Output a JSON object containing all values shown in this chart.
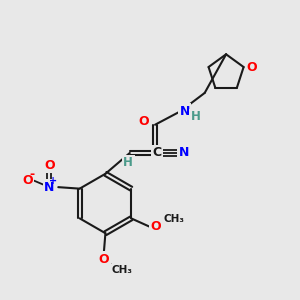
{
  "background_color": "#e8e8e8",
  "bond_color": "#1a1a1a",
  "atom_colors": {
    "O": "#ff0000",
    "N": "#0000ff",
    "C": "#1a1a1a",
    "H": "#4a9a8a"
  },
  "figsize": [
    3.0,
    3.0
  ],
  "dpi": 100
}
